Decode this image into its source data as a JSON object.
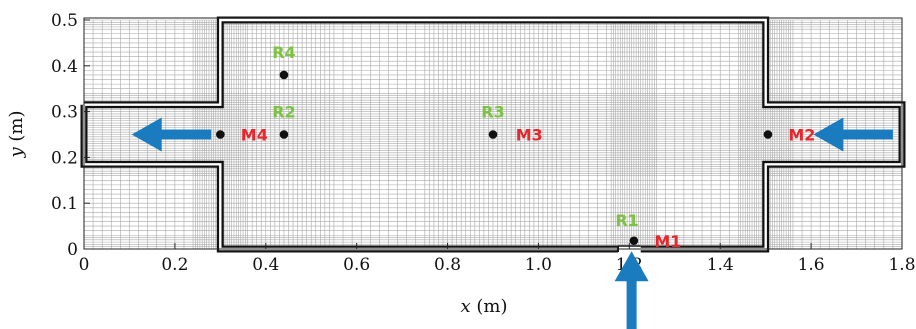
{
  "chart_data": {
    "type": "scatter",
    "xlabel": {
      "var": "x",
      "unit": " (m)"
    },
    "ylabel": {
      "var": "y",
      "unit": " (m)"
    },
    "xlim": [
      0,
      1.8
    ],
    "ylim": [
      0,
      0.5
    ],
    "x_ticks": [
      "0",
      "0.2",
      "0.4",
      "0.6",
      "0.8",
      "1.0",
      "1.2",
      "1.4",
      "1.6",
      "1.8"
    ],
    "y_ticks": [
      "0",
      "0.1",
      "0.2",
      "0.3",
      "0.4",
      "0.5"
    ],
    "grid": "dense mesh",
    "colors": {
      "measurement": "#e8262b",
      "reference": "#7dc242",
      "flow_arrow": "#1a7bbf",
      "wall": "#111111",
      "mesh": "#a9a9a9"
    },
    "geometry": {
      "outline": [
        [
          0,
          0.315
        ],
        [
          0.3,
          0.315
        ],
        [
          0.3,
          0.5
        ],
        [
          1.5,
          0.5
        ],
        [
          1.5,
          0.315
        ],
        [
          1.8,
          0.315
        ],
        [
          1.8,
          0.185
        ],
        [
          1.5,
          0.185
        ],
        [
          1.5,
          0
        ],
        [
          0.3,
          0
        ],
        [
          0.3,
          0.185
        ],
        [
          0,
          0.185
        ],
        [
          0,
          0.315
        ]
      ],
      "inlet_gap": [
        1.175,
        1.225
      ]
    },
    "points": [
      {
        "label": "M1",
        "group": "measurement",
        "x": 1.21,
        "y": 0.018,
        "text_x": 1.255,
        "text_y": 0.018
      },
      {
        "label": "M2",
        "group": "measurement",
        "x": 1.505,
        "y": 0.25,
        "text_x": 1.55,
        "text_y": 0.25
      },
      {
        "label": "M3",
        "group": "measurement",
        "x": 0.9,
        "y": 0.25,
        "text_x": 0.95,
        "text_y": 0.25
      },
      {
        "label": "M4",
        "group": "measurement",
        "x": 0.3,
        "y": 0.25,
        "text_x": 0.345,
        "text_y": 0.25
      },
      {
        "label": "R1",
        "group": "reference",
        "x": 1.21,
        "y": 0.018,
        "text_x": 1.195,
        "text_y": 0.063
      },
      {
        "label": "R2",
        "group": "reference",
        "x": 0.44,
        "y": 0.25,
        "text_x": 0.44,
        "text_y": 0.3
      },
      {
        "label": "R3",
        "group": "reference",
        "x": 0.9,
        "y": 0.25,
        "text_x": 0.9,
        "text_y": 0.3
      },
      {
        "label": "R4",
        "group": "reference",
        "x": 0.44,
        "y": 0.38,
        "text_x": 0.44,
        "text_y": 0.43
      }
    ],
    "flow_arrows": [
      {
        "name": "inlet-bottom-arrow",
        "from": [
          1.205,
          -0.21
        ],
        "to": [
          1.205,
          -0.005
        ]
      },
      {
        "name": "inlet-right-arrow",
        "from": [
          1.78,
          0.25
        ],
        "to": [
          1.605,
          0.25
        ]
      },
      {
        "name": "outlet-left-arrow",
        "from": [
          0.28,
          0.25
        ],
        "to": [
          0.105,
          0.25
        ]
      }
    ]
  }
}
